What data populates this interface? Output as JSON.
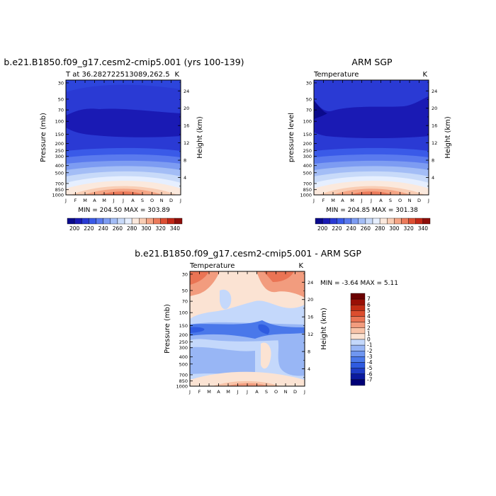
{
  "chart_data": [
    {
      "type": "heatmap",
      "id": "model",
      "title": "b.e21.B1850.f09_g17.cesm2-cmip5.001 (yrs 100-139)",
      "left_label": "T at 36.282722513089,262.5",
      "right_label": "K",
      "ylabel": "Pressure (mb)",
      "ylabel_right": "Height (km)",
      "xlabel": "",
      "x_ticks": [
        "J",
        "F",
        "M",
        "A",
        "M",
        "J",
        "J",
        "A",
        "S",
        "O",
        "N",
        "D",
        "J"
      ],
      "pressure_ticks": [
        "30",
        "50",
        "70",
        "100",
        "150",
        "200",
        "250",
        "300",
        "400",
        "500",
        "700",
        "850",
        "1000"
      ],
      "height_ticks": [
        "24",
        "20",
        "16",
        "12",
        "8",
        "4"
      ],
      "minmax_text": "MIN = 204.50 MAX = 303.89",
      "min": 204.5,
      "max": 303.89,
      "colorbar_labels": [
        "200",
        "220",
        "240",
        "260",
        "280",
        "300",
        "320",
        "340"
      ]
    },
    {
      "type": "heatmap",
      "id": "obs",
      "title": "ARM SGP",
      "left_label": "Temperature",
      "right_label": "K",
      "ylabel": "pressure level",
      "ylabel_right": "Height (km)",
      "xlabel": "",
      "x_ticks": [
        "J",
        "F",
        "M",
        "A",
        "M",
        "J",
        "J",
        "A",
        "S",
        "O",
        "N",
        "D",
        "J"
      ],
      "pressure_ticks": [
        "30",
        "50",
        "70",
        "100",
        "150",
        "200",
        "250",
        "300",
        "400",
        "500",
        "700",
        "850",
        "1000"
      ],
      "height_ticks": [
        "24",
        "20",
        "16",
        "12",
        "8",
        "4"
      ],
      "minmax_text": "MIN = 204.85 MAX = 301.38",
      "min": 204.85,
      "max": 301.38,
      "colorbar_labels": [
        "200",
        "220",
        "240",
        "260",
        "280",
        "300",
        "320",
        "340"
      ]
    },
    {
      "type": "heatmap",
      "id": "diff",
      "title": "b.e21.B1850.f09_g17.cesm2-cmip5.001 - ARM SGP",
      "left_label": "Temperature",
      "right_label": "K",
      "ylabel": "Pressure (mb)",
      "ylabel_right": "Height (km)",
      "xlabel": "",
      "x_ticks": [
        "J",
        "F",
        "M",
        "A",
        "M",
        "J",
        "J",
        "A",
        "S",
        "O",
        "N",
        "D",
        "J"
      ],
      "pressure_ticks": [
        "30",
        "50",
        "70",
        "100",
        "150",
        "200",
        "250",
        "300",
        "400",
        "500",
        "700",
        "850",
        "1000"
      ],
      "height_ticks": [
        "24",
        "20",
        "16",
        "12",
        "8",
        "4"
      ],
      "minmax_text": "MIN =   -3.64 MAX =    5.11",
      "min": -3.64,
      "max": 5.11,
      "colorbar_labels": [
        "7",
        "6",
        "5",
        "4",
        "3",
        "2",
        "1",
        "0",
        "-1",
        "-2",
        "-3",
        "-4",
        "-5",
        "-6",
        "-7"
      ]
    }
  ],
  "colors": {
    "temp_scale": [
      "#0a0a8c",
      "#1a1ab4",
      "#2a3ad4",
      "#3a5ae8",
      "#5a7aee",
      "#7d9cf2",
      "#a3bdf6",
      "#c8daf9",
      "#e6efff",
      "#fbe9dd",
      "#f9cdb4",
      "#f5a585",
      "#ec7b5b",
      "#dd4f33",
      "#c22717",
      "#8e0e0a"
    ],
    "diff_scale": [
      "#000077",
      "#0b1a9e",
      "#1e3cc6",
      "#2f5be0",
      "#4a78ea",
      "#6f96f0",
      "#98b6f5",
      "#c4d8fb",
      "#fbe3d3",
      "#f8c3a8",
      "#f29c7e",
      "#ea7454",
      "#dc4d2e",
      "#c12c14",
      "#990f05",
      "#6b0000"
    ]
  }
}
